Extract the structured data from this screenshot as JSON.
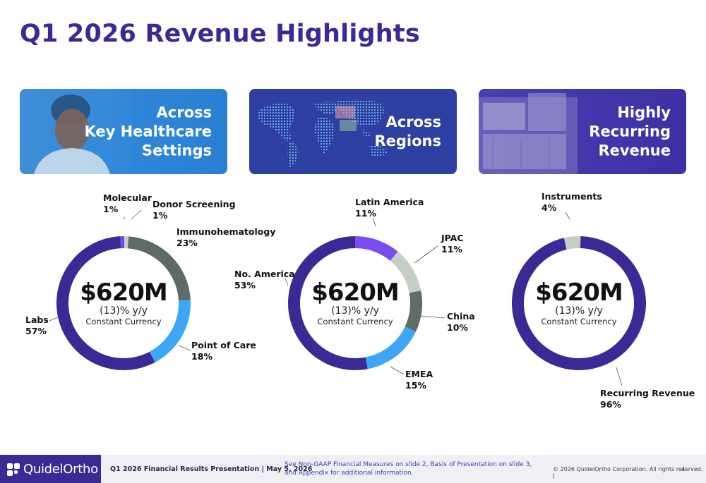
{
  "title": "Q1 2026 Revenue Highlights",
  "tiles": [
    {
      "lines": [
        "Across",
        "Key Healthcare",
        "Settings"
      ]
    },
    {
      "lines": [
        "Across",
        "Regions"
      ]
    },
    {
      "lines": [
        "Highly",
        "Recurring",
        "Revenue"
      ]
    }
  ],
  "chart_data": [
    {
      "type": "pie",
      "center_value": "$620M",
      "center_change": "(13)% y/y",
      "center_basis": "Constant Currency",
      "slices": [
        {
          "name": "Molecular",
          "value": 1,
          "value_label": "1%",
          "color": "#6a4cf0"
        },
        {
          "name": "Donor Screening",
          "value": 1,
          "value_label": "1%",
          "color": "#c7cfc7"
        },
        {
          "name": "Immunohematology",
          "value": 23,
          "value_label": "23%",
          "color": "#5d6b66"
        },
        {
          "name": "Point of Care",
          "value": 18,
          "value_label": "18%",
          "color": "#3ea7f5"
        },
        {
          "name": "Labs",
          "value": 57,
          "value_label": "57%",
          "color": "#3b2a96"
        }
      ]
    },
    {
      "type": "pie",
      "center_value": "$620M",
      "center_change": "(13)% y/y",
      "center_basis": "Constant Currency",
      "slices": [
        {
          "name": "Latin America",
          "value": 11,
          "value_label": "11%",
          "color": "#7a4cf2"
        },
        {
          "name": "JPAC",
          "value": 11,
          "value_label": "11%",
          "color": "#c5cfc6"
        },
        {
          "name": "China",
          "value": 10,
          "value_label": "10%",
          "color": "#5e6c67"
        },
        {
          "name": "EMEA",
          "value": 15,
          "value_label": "15%",
          "color": "#3ea7f5"
        },
        {
          "name": "No. America",
          "value": 53,
          "value_label": "53%",
          "color": "#3b2a96"
        }
      ]
    },
    {
      "type": "pie",
      "center_value": "$620M",
      "center_change": "(13)% y/y",
      "center_basis": "Constant Currency",
      "slices": [
        {
          "name": "Recurring Revenue",
          "value": 96,
          "value_label": "96%",
          "color": "#3b2a96"
        },
        {
          "name": "Instruments",
          "value": 4,
          "value_label": "4%",
          "color": "#c5cfc6"
        }
      ]
    }
  ],
  "footer": {
    "brand": "QuidelOrtho",
    "presentation": "Q1 2026 Financial Results Presentation  |  May 5, 2026",
    "note": "See Non-GAAP Financial Measures on slide 2, Basis of Presentation on slide 3, and Appendix for additional information.",
    "copyright": "© 2026 QuidelOrtho Corporation. All rights reserved.  |",
    "page": "4"
  },
  "colors": {
    "title": "#3b2a96",
    "brand": "#3a2a93",
    "note_link": "#3a3fb0"
  }
}
